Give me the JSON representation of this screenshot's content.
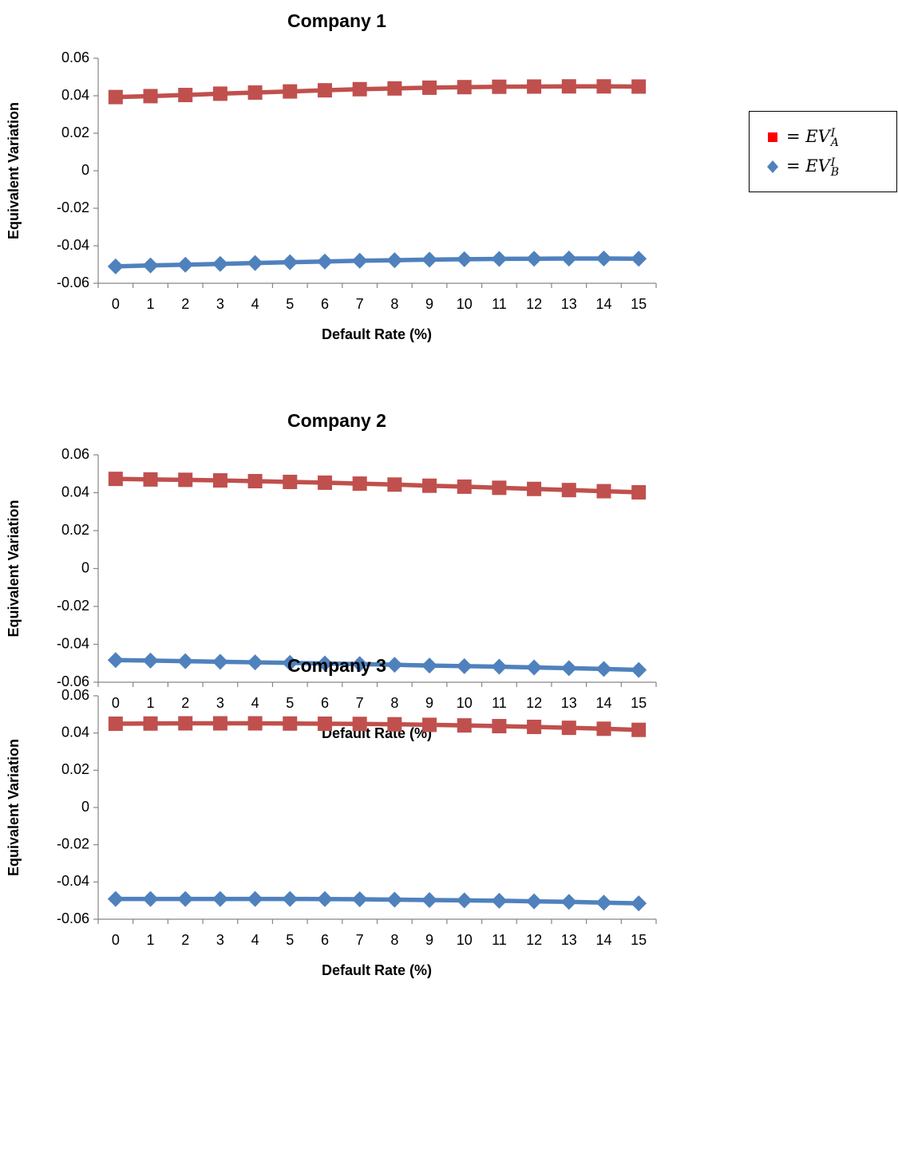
{
  "legend": {
    "items": [
      {
        "marker": "square",
        "color": "#ff0000",
        "eq": "=",
        "var": "EV",
        "sub": "A",
        "sup": "I"
      },
      {
        "marker": "diamond",
        "color": "#4f81bd",
        "eq": "=",
        "var": "EV",
        "sub": "B",
        "sup": "I"
      }
    ]
  },
  "colors": {
    "series_a": "#c0504d",
    "series_b": "#4f81bd"
  },
  "chart_data": [
    {
      "type": "line",
      "title": "Company 1",
      "xlabel": "Default Rate (%)",
      "ylabel": "Equivalent Variation",
      "categories": [
        "0",
        "1",
        "2",
        "3",
        "4",
        "5",
        "6",
        "7",
        "8",
        "9",
        "10",
        "11",
        "12",
        "13",
        "14",
        "15"
      ],
      "ylim": [
        -0.06,
        0.06
      ],
      "yticks": [
        "0.06",
        "0.04",
        "0.02",
        "0",
        "-0.02",
        "-0.04",
        "-0.06"
      ],
      "series": [
        {
          "values": [
            0.0393,
            0.0398,
            0.0404,
            0.0411,
            0.0417,
            0.0423,
            0.0429,
            0.0435,
            0.0439,
            0.0443,
            0.0446,
            0.0448,
            0.0449,
            0.045,
            0.045,
            0.0449
          ]
        },
        {
          "values": [
            -0.051,
            -0.0505,
            -0.0501,
            -0.0497,
            -0.0492,
            -0.0488,
            -0.0484,
            -0.048,
            -0.0477,
            -0.0474,
            -0.0472,
            -0.047,
            -0.0469,
            -0.0468,
            -0.0468,
            -0.0469
          ]
        }
      ]
    },
    {
      "type": "line",
      "title": "Company 2",
      "xlabel": "Default Rate (%)",
      "ylabel": "Equivalent Variation",
      "categories": [
        "0",
        "1",
        "2",
        "3",
        "4",
        "5",
        "6",
        "7",
        "8",
        "9",
        "10",
        "11",
        "12",
        "13",
        "14",
        "15"
      ],
      "ylim": [
        -0.06,
        0.06
      ],
      "yticks": [
        "0.06",
        "0.04",
        "0.02",
        "0",
        "-0.02",
        "-0.04",
        "-0.06"
      ],
      "series": [
        {
          "values": [
            0.0473,
            0.047,
            0.0468,
            0.0465,
            0.0461,
            0.0457,
            0.0453,
            0.0448,
            0.0443,
            0.0437,
            0.0432,
            0.0426,
            0.042,
            0.0414,
            0.0408,
            0.0402
          ]
        },
        {
          "values": [
            -0.0483,
            -0.0486,
            -0.0489,
            -0.0492,
            -0.0495,
            -0.0498,
            -0.0501,
            -0.0504,
            -0.0508,
            -0.0512,
            -0.0515,
            -0.0518,
            -0.0522,
            -0.0526,
            -0.053,
            -0.0535
          ]
        }
      ]
    },
    {
      "type": "line",
      "title": "Company 3",
      "xlabel": "Default Rate (%)",
      "ylabel": "Equivalent Variation",
      "categories": [
        "0",
        "1",
        "2",
        "3",
        "4",
        "5",
        "6",
        "7",
        "8",
        "9",
        "10",
        "11",
        "12",
        "13",
        "14",
        "15"
      ],
      "ylim": [
        -0.06,
        0.06
      ],
      "yticks": [
        "0.06",
        "0.04",
        "0.02",
        "0",
        "-0.02",
        "-0.04",
        "-0.06"
      ],
      "series": [
        {
          "values": [
            0.045,
            0.0451,
            0.0452,
            0.0452,
            0.0452,
            0.0451,
            0.045,
            0.0449,
            0.0447,
            0.0444,
            0.0441,
            0.0437,
            0.0433,
            0.0428,
            0.0423,
            0.0417
          ]
        },
        {
          "values": [
            -0.0491,
            -0.0491,
            -0.0491,
            -0.0491,
            -0.0491,
            -0.0491,
            -0.0492,
            -0.0493,
            -0.0495,
            -0.0497,
            -0.0499,
            -0.0501,
            -0.0504,
            -0.0507,
            -0.0511,
            -0.0515
          ]
        }
      ]
    }
  ]
}
